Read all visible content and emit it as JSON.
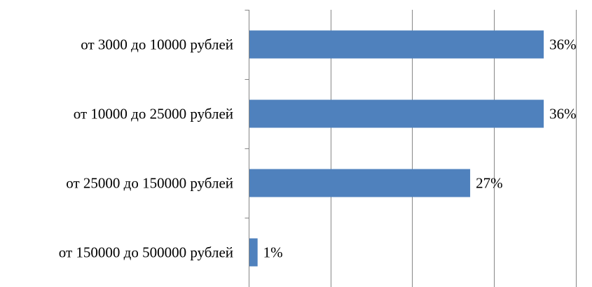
{
  "chart_data": {
    "type": "bar",
    "orientation": "horizontal",
    "categories": [
      "от 3000 до 10000 рублей",
      "от 10000 до 25000 рублей",
      "от 25000 до 150000 рублей",
      "от 150000 до 500000 рублей"
    ],
    "values": [
      36,
      36,
      27,
      1
    ],
    "value_labels": [
      "36%",
      "36%",
      "27%",
      "1%"
    ],
    "unit": "%",
    "xlim": [
      0,
      40
    ],
    "x_gridline_step": 10,
    "grid": true,
    "legend": "none",
    "title": "",
    "xlabel": "",
    "ylabel": "",
    "bar_color": "#4F81BD"
  }
}
